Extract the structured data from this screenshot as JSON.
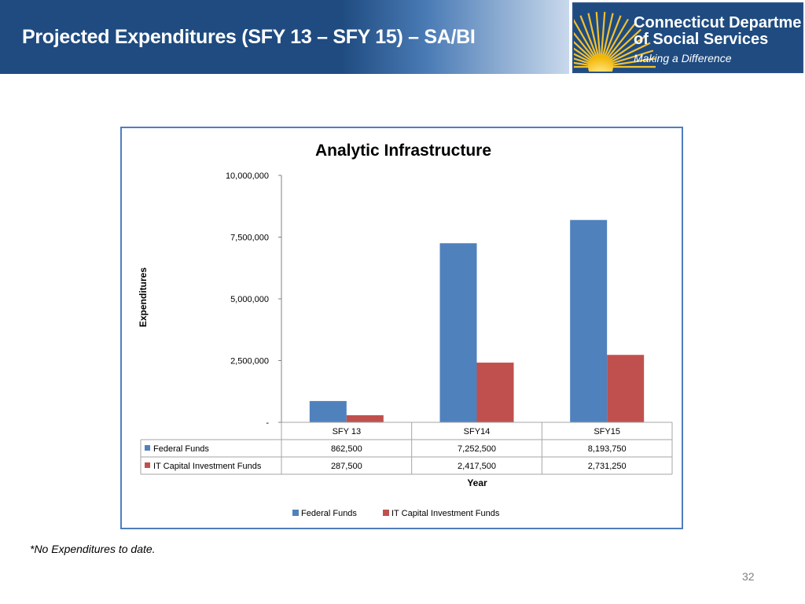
{
  "slide": {
    "title": "Projected Expenditures (SFY 13 – SFY 15) – SA/BI",
    "footnote": "*No Expenditures to date.",
    "page_number": "32",
    "logo": {
      "line1": "Connecticut Department",
      "line2": "of Social Services",
      "tagline": "Making a Difference"
    }
  },
  "chart_data": {
    "type": "bar",
    "title": "Analytic Infrastructure",
    "xlabel": "Year",
    "ylabel": "Expenditures",
    "categories": [
      "SFY 13",
      "SFY14",
      "SFY15"
    ],
    "ylim": [
      0,
      10000000
    ],
    "yticks": [
      {
        "value": 0,
        "label": "-"
      },
      {
        "value": 2500000,
        "label": "2,500,000"
      },
      {
        "value": 5000000,
        "label": "5,000,000"
      },
      {
        "value": 7500000,
        "label": "7,500,000"
      },
      {
        "value": 10000000,
        "label": "10,000,000"
      }
    ],
    "series": [
      {
        "name": "Federal Funds",
        "color": "#4f81bd",
        "values": [
          862500,
          7252500,
          8193750
        ],
        "labels": [
          "862,500",
          "7,252,500",
          "8,193,750"
        ]
      },
      {
        "name": "IT Capital Investment Funds",
        "color": "#c0504d",
        "values": [
          287500,
          2417500,
          2731250
        ],
        "labels": [
          "287,500",
          "2,417,500",
          "2,731,250"
        ]
      }
    ],
    "data_table": true,
    "legend": "bottom",
    "grid": false
  }
}
